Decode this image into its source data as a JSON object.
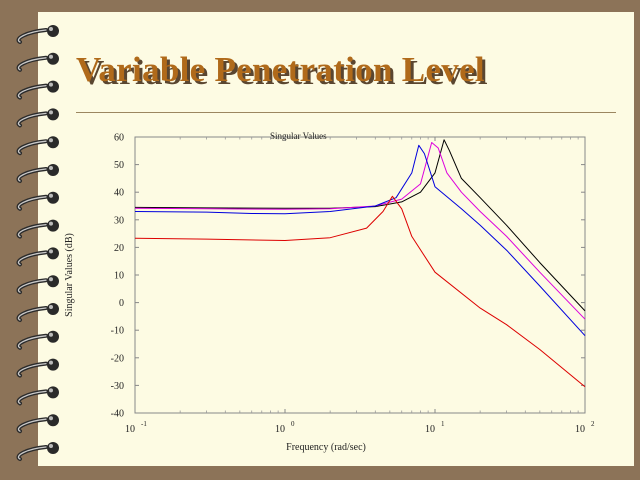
{
  "slide": {
    "title": "Variable Penetration Level",
    "accent_color": "#b06a1a",
    "background_color": "#fdfbe3",
    "frame_color": "#8c7358",
    "binding": "spiral-coil"
  },
  "chart_data": {
    "type": "line",
    "title": "Singular Values",
    "xlabel": "Frequency (rad/sec)",
    "ylabel": "Singular Values (dB)",
    "xscale": "log",
    "xlim": [
      0.1,
      100
    ],
    "ylim": [
      -40,
      60
    ],
    "yticks": [
      60,
      50,
      40,
      30,
      20,
      10,
      0,
      -10,
      -20,
      -30,
      -40
    ],
    "xticks": [
      {
        "value": 0.1,
        "base": "10",
        "exp": "-1"
      },
      {
        "value": 1,
        "base": "10",
        "exp": "0"
      },
      {
        "value": 10,
        "base": "10",
        "exp": "1"
      },
      {
        "value": 100,
        "base": "10",
        "exp": "2"
      }
    ],
    "grid": false,
    "series": [
      {
        "color": "#000000",
        "points": [
          [
            0.1,
            34.5
          ],
          [
            0.3,
            34.3
          ],
          [
            1,
            34.2
          ],
          [
            2,
            34.2
          ],
          [
            4,
            34.8
          ],
          [
            6,
            36.5
          ],
          [
            8,
            40
          ],
          [
            10,
            47
          ],
          [
            11.5,
            59
          ],
          [
            12.5,
            55
          ],
          [
            15,
            45
          ],
          [
            20,
            38
          ],
          [
            30,
            28
          ],
          [
            50,
            14.5
          ],
          [
            100,
            -3
          ]
        ]
      },
      {
        "color": "#dd00dd",
        "points": [
          [
            0.1,
            34.2
          ],
          [
            0.3,
            34.0
          ],
          [
            1,
            33.8
          ],
          [
            2,
            34.0
          ],
          [
            4,
            35
          ],
          [
            6,
            37.5
          ],
          [
            8,
            43
          ],
          [
            9.5,
            58
          ],
          [
            10.5,
            56
          ],
          [
            12,
            47
          ],
          [
            15,
            40
          ],
          [
            20,
            33
          ],
          [
            30,
            24
          ],
          [
            50,
            11
          ],
          [
            100,
            -6
          ]
        ]
      },
      {
        "color": "#0000dd",
        "points": [
          [
            0.1,
            33
          ],
          [
            0.3,
            32.8
          ],
          [
            0.6,
            32.3
          ],
          [
            1,
            32.2
          ],
          [
            2,
            33
          ],
          [
            4,
            35
          ],
          [
            5.5,
            38
          ],
          [
            7,
            47
          ],
          [
            7.8,
            57
          ],
          [
            8.5,
            54
          ],
          [
            10,
            42
          ],
          [
            15,
            34
          ],
          [
            20,
            28
          ],
          [
            30,
            19
          ],
          [
            50,
            6
          ],
          [
            100,
            -12
          ]
        ]
      },
      {
        "color": "#dd0000",
        "points": [
          [
            0.1,
            23.3
          ],
          [
            0.3,
            23
          ],
          [
            1,
            22.5
          ],
          [
            2,
            23.5
          ],
          [
            3.5,
            27
          ],
          [
            4.5,
            33
          ],
          [
            5.2,
            38.5
          ],
          [
            6,
            34
          ],
          [
            7,
            24
          ],
          [
            10,
            11
          ],
          [
            20,
            -2
          ],
          [
            30,
            -8
          ],
          [
            50,
            -17
          ],
          [
            100,
            -30.5
          ]
        ]
      }
    ]
  }
}
